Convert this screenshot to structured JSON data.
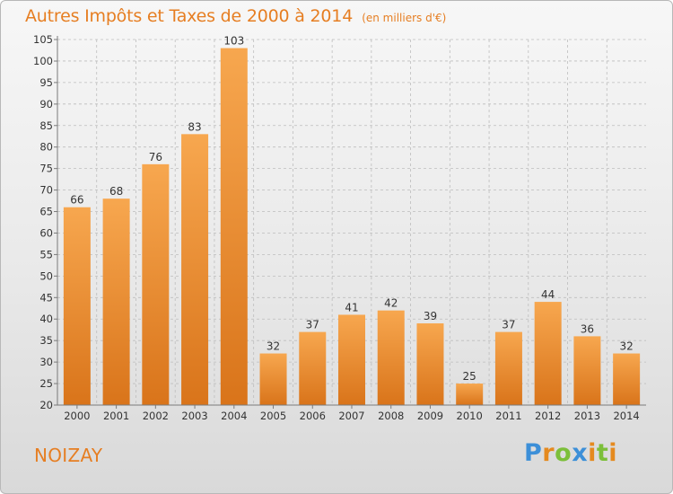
{
  "chart_data": {
    "type": "bar",
    "title": "Autres Impôts et Taxes de 2000 à 2014",
    "subtitle": "(en milliers d'€)",
    "categories": [
      "2000",
      "2001",
      "2002",
      "2003",
      "2004",
      "2005",
      "2006",
      "2007",
      "2008",
      "2009",
      "2010",
      "2011",
      "2012",
      "2013",
      "2014"
    ],
    "values": [
      66,
      68,
      76,
      83,
      103,
      32,
      37,
      41,
      42,
      39,
      25,
      37,
      44,
      36,
      32
    ],
    "ylim": [
      20,
      105
    ],
    "yticks": [
      20,
      25,
      30,
      35,
      40,
      45,
      50,
      55,
      60,
      65,
      70,
      75,
      80,
      85,
      90,
      95,
      100,
      105
    ],
    "grid": true,
    "data_labels": true
  },
  "place_name": "NOIZAY",
  "brand": {
    "letters": [
      "P",
      "r",
      "o",
      "x",
      "i",
      "t",
      "i"
    ],
    "colors": [
      "#3c8fd8",
      "#e58a1f",
      "#7cbf3a",
      "#3c8fd8",
      "#e58a1f",
      "#7cbf3a",
      "#e58a1f"
    ]
  },
  "colors": {
    "bar_light": "#f7a74f",
    "bar_dark": "#d9741a",
    "accent": "#e67e22",
    "grid": "#bdbdbd",
    "axis": "#7a7a7a"
  }
}
